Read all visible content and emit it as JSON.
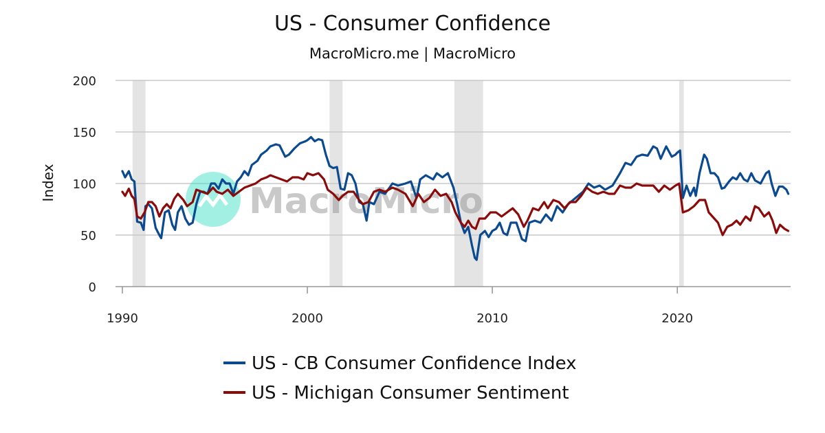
{
  "chart_data": {
    "type": "line",
    "title": "US - Consumer Confidence",
    "subtitle": "MacroMicro.me | MacroMicro",
    "watermark": "MacroMicro",
    "ylabel": "Index",
    "xlabel": "",
    "xlim": [
      1990.0,
      2026.2
    ],
    "ylim": [
      0,
      200
    ],
    "y_ticks": [
      0,
      50,
      100,
      150,
      200
    ],
    "x_ticks": [
      1990,
      2000,
      2010,
      2020
    ],
    "grid": true,
    "legend_position": "bottom",
    "recessions": [
      [
        1990.55,
        1991.25
      ],
      [
        2001.2,
        2001.9
      ],
      [
        2007.95,
        2009.5
      ],
      [
        2020.1,
        2020.35
      ]
    ],
    "series": [
      {
        "name": "US - CB Consumer Confidence Index",
        "color": "#0b4a8f",
        "points": [
          [
            1990.0,
            112
          ],
          [
            1990.15,
            106
          ],
          [
            1990.35,
            112
          ],
          [
            1990.5,
            104
          ],
          [
            1990.65,
            102
          ],
          [
            1990.8,
            63
          ],
          [
            1991.0,
            62
          ],
          [
            1991.15,
            55
          ],
          [
            1991.25,
            78
          ],
          [
            1991.4,
            80
          ],
          [
            1991.6,
            76
          ],
          [
            1991.8,
            57
          ],
          [
            1992.0,
            50
          ],
          [
            1992.1,
            47
          ],
          [
            1992.3,
            72
          ],
          [
            1992.5,
            74
          ],
          [
            1992.7,
            60
          ],
          [
            1992.85,
            55
          ],
          [
            1993.0,
            72
          ],
          [
            1993.2,
            78
          ],
          [
            1993.4,
            66
          ],
          [
            1993.6,
            60
          ],
          [
            1993.8,
            62
          ],
          [
            1994.0,
            80
          ],
          [
            1994.2,
            92
          ],
          [
            1994.4,
            92
          ],
          [
            1994.6,
            90
          ],
          [
            1994.8,
            100
          ],
          [
            1995.0,
            100
          ],
          [
            1995.2,
            95
          ],
          [
            1995.4,
            104
          ],
          [
            1995.6,
            100
          ],
          [
            1995.8,
            100
          ],
          [
            1996.0,
            90
          ],
          [
            1996.2,
            102
          ],
          [
            1996.4,
            106
          ],
          [
            1996.6,
            112
          ],
          [
            1996.8,
            108
          ],
          [
            1997.0,
            118
          ],
          [
            1997.3,
            122
          ],
          [
            1997.5,
            128
          ],
          [
            1997.8,
            132
          ],
          [
            1998.0,
            136
          ],
          [
            1998.3,
            138
          ],
          [
            1998.5,
            137
          ],
          [
            1998.8,
            126
          ],
          [
            1999.0,
            128
          ],
          [
            1999.3,
            134
          ],
          [
            1999.6,
            139
          ],
          [
            1999.9,
            141
          ],
          [
            2000.0,
            142
          ],
          [
            2000.2,
            145
          ],
          [
            2000.4,
            141
          ],
          [
            2000.6,
            143
          ],
          [
            2000.8,
            142
          ],
          [
            2001.0,
            128
          ],
          [
            2001.2,
            117
          ],
          [
            2001.4,
            115
          ],
          [
            2001.6,
            116
          ],
          [
            2001.8,
            95
          ],
          [
            2002.0,
            94
          ],
          [
            2002.2,
            110
          ],
          [
            2002.4,
            108
          ],
          [
            2002.6,
            100
          ],
          [
            2002.8,
            82
          ],
          [
            2003.0,
            80
          ],
          [
            2003.2,
            64
          ],
          [
            2003.35,
            82
          ],
          [
            2003.6,
            80
          ],
          [
            2003.9,
            92
          ],
          [
            2004.2,
            90
          ],
          [
            2004.6,
            100
          ],
          [
            2004.9,
            98
          ],
          [
            2005.3,
            100
          ],
          [
            2005.6,
            102
          ],
          [
            2005.9,
            86
          ],
          [
            2006.1,
            104
          ],
          [
            2006.4,
            108
          ],
          [
            2006.8,
            104
          ],
          [
            2007.0,
            110
          ],
          [
            2007.3,
            106
          ],
          [
            2007.6,
            110
          ],
          [
            2007.9,
            96
          ],
          [
            2008.1,
            80
          ],
          [
            2008.3,
            62
          ],
          [
            2008.5,
            52
          ],
          [
            2008.7,
            58
          ],
          [
            2008.9,
            40
          ],
          [
            2009.05,
            28
          ],
          [
            2009.15,
            26
          ],
          [
            2009.35,
            50
          ],
          [
            2009.6,
            54
          ],
          [
            2009.8,
            48
          ],
          [
            2010.0,
            54
          ],
          [
            2010.2,
            56
          ],
          [
            2010.4,
            62
          ],
          [
            2010.6,
            52
          ],
          [
            2010.8,
            50
          ],
          [
            2011.0,
            62
          ],
          [
            2011.3,
            62
          ],
          [
            2011.6,
            46
          ],
          [
            2011.8,
            44
          ],
          [
            2012.0,
            62
          ],
          [
            2012.3,
            64
          ],
          [
            2012.6,
            62
          ],
          [
            2012.9,
            70
          ],
          [
            2013.2,
            64
          ],
          [
            2013.5,
            78
          ],
          [
            2013.8,
            72
          ],
          [
            2014.1,
            80
          ],
          [
            2014.5,
            86
          ],
          [
            2014.9,
            92
          ],
          [
            2015.2,
            100
          ],
          [
            2015.5,
            96
          ],
          [
            2015.8,
            98
          ],
          [
            2016.1,
            94
          ],
          [
            2016.5,
            98
          ],
          [
            2016.9,
            110
          ],
          [
            2017.2,
            120
          ],
          [
            2017.5,
            118
          ],
          [
            2017.8,
            126
          ],
          [
            2018.1,
            128
          ],
          [
            2018.4,
            127
          ],
          [
            2018.7,
            136
          ],
          [
            2018.9,
            134
          ],
          [
            2019.1,
            124
          ],
          [
            2019.4,
            136
          ],
          [
            2019.7,
            126
          ],
          [
            2019.9,
            128
          ],
          [
            2020.0,
            130
          ],
          [
            2020.15,
            132
          ],
          [
            2020.3,
            86
          ],
          [
            2020.5,
            98
          ],
          [
            2020.7,
            88
          ],
          [
            2020.9,
            96
          ],
          [
            2021.0,
            88
          ],
          [
            2021.2,
            110
          ],
          [
            2021.45,
            128
          ],
          [
            2021.6,
            124
          ],
          [
            2021.8,
            110
          ],
          [
            2022.0,
            110
          ],
          [
            2022.2,
            106
          ],
          [
            2022.4,
            95
          ],
          [
            2022.55,
            96
          ],
          [
            2022.8,
            102
          ],
          [
            2023.0,
            106
          ],
          [
            2023.2,
            104
          ],
          [
            2023.4,
            110
          ],
          [
            2023.6,
            104
          ],
          [
            2023.8,
            102
          ],
          [
            2024.0,
            110
          ],
          [
            2024.2,
            103
          ],
          [
            2024.5,
            100
          ],
          [
            2024.8,
            110
          ],
          [
            2024.95,
            112
          ],
          [
            2025.1,
            100
          ],
          [
            2025.3,
            88
          ],
          [
            2025.5,
            97
          ],
          [
            2025.7,
            97
          ],
          [
            2025.9,
            94
          ],
          [
            2026.0,
            90
          ]
        ]
      },
      {
        "name": "US - Michigan Consumer Sentiment",
        "color": "#8b0a0a",
        "points": [
          [
            1990.0,
            92
          ],
          [
            1990.15,
            88
          ],
          [
            1990.35,
            95
          ],
          [
            1990.5,
            88
          ],
          [
            1990.65,
            85
          ],
          [
            1990.8,
            68
          ],
          [
            1991.0,
            66
          ],
          [
            1991.2,
            72
          ],
          [
            1991.4,
            82
          ],
          [
            1991.6,
            82
          ],
          [
            1991.8,
            78
          ],
          [
            1992.0,
            68
          ],
          [
            1992.2,
            76
          ],
          [
            1992.4,
            80
          ],
          [
            1992.6,
            76
          ],
          [
            1992.8,
            85
          ],
          [
            1993.0,
            90
          ],
          [
            1993.3,
            84
          ],
          [
            1993.5,
            78
          ],
          [
            1993.8,
            82
          ],
          [
            1994.0,
            94
          ],
          [
            1994.3,
            92
          ],
          [
            1994.6,
            90
          ],
          [
            1994.9,
            96
          ],
          [
            1995.1,
            92
          ],
          [
            1995.4,
            90
          ],
          [
            1995.7,
            94
          ],
          [
            1996.0,
            88
          ],
          [
            1996.3,
            92
          ],
          [
            1996.6,
            96
          ],
          [
            1996.9,
            98
          ],
          [
            1997.2,
            100
          ],
          [
            1997.5,
            104
          ],
          [
            1997.8,
            106
          ],
          [
            1998.0,
            108
          ],
          [
            1998.3,
            106
          ],
          [
            1998.6,
            104
          ],
          [
            1998.9,
            102
          ],
          [
            1999.2,
            106
          ],
          [
            1999.5,
            106
          ],
          [
            1999.8,
            104
          ],
          [
            2000.0,
            110
          ],
          [
            2000.3,
            108
          ],
          [
            2000.6,
            110
          ],
          [
            2000.9,
            104
          ],
          [
            2001.1,
            94
          ],
          [
            2001.4,
            90
          ],
          [
            2001.7,
            84
          ],
          [
            2001.9,
            88
          ],
          [
            2002.2,
            92
          ],
          [
            2002.5,
            92
          ],
          [
            2002.8,
            84
          ],
          [
            2003.0,
            80
          ],
          [
            2003.3,
            82
          ],
          [
            2003.6,
            92
          ],
          [
            2003.9,
            94
          ],
          [
            2004.2,
            92
          ],
          [
            2004.6,
            96
          ],
          [
            2004.9,
            94
          ],
          [
            2005.3,
            90
          ],
          [
            2005.7,
            78
          ],
          [
            2006.0,
            90
          ],
          [
            2006.3,
            82
          ],
          [
            2006.6,
            86
          ],
          [
            2006.9,
            94
          ],
          [
            2007.2,
            88
          ],
          [
            2007.5,
            90
          ],
          [
            2007.8,
            82
          ],
          [
            2008.0,
            72
          ],
          [
            2008.3,
            62
          ],
          [
            2008.5,
            58
          ],
          [
            2008.7,
            64
          ],
          [
            2008.9,
            58
          ],
          [
            2009.1,
            56
          ],
          [
            2009.3,
            66
          ],
          [
            2009.6,
            66
          ],
          [
            2009.9,
            72
          ],
          [
            2010.2,
            72
          ],
          [
            2010.5,
            68
          ],
          [
            2010.8,
            72
          ],
          [
            2011.1,
            76
          ],
          [
            2011.4,
            70
          ],
          [
            2011.7,
            58
          ],
          [
            2011.9,
            64
          ],
          [
            2012.2,
            76
          ],
          [
            2012.5,
            74
          ],
          [
            2012.8,
            82
          ],
          [
            2013.0,
            76
          ],
          [
            2013.3,
            84
          ],
          [
            2013.6,
            82
          ],
          [
            2013.9,
            76
          ],
          [
            2014.2,
            82
          ],
          [
            2014.5,
            82
          ],
          [
            2014.8,
            88
          ],
          [
            2015.1,
            96
          ],
          [
            2015.4,
            92
          ],
          [
            2015.7,
            90
          ],
          [
            2016.0,
            92
          ],
          [
            2016.3,
            90
          ],
          [
            2016.6,
            90
          ],
          [
            2016.9,
            98
          ],
          [
            2017.2,
            96
          ],
          [
            2017.5,
            96
          ],
          [
            2017.8,
            100
          ],
          [
            2018.1,
            98
          ],
          [
            2018.4,
            98
          ],
          [
            2018.7,
            98
          ],
          [
            2019.0,
            92
          ],
          [
            2019.3,
            98
          ],
          [
            2019.6,
            94
          ],
          [
            2019.9,
            98
          ],
          [
            2020.1,
            100
          ],
          [
            2020.3,
            72
          ],
          [
            2020.6,
            74
          ],
          [
            2020.9,
            78
          ],
          [
            2021.2,
            84
          ],
          [
            2021.5,
            84
          ],
          [
            2021.7,
            72
          ],
          [
            2021.9,
            68
          ],
          [
            2022.2,
            62
          ],
          [
            2022.45,
            50
          ],
          [
            2022.7,
            58
          ],
          [
            2022.95,
            60
          ],
          [
            2023.2,
            64
          ],
          [
            2023.4,
            60
          ],
          [
            2023.7,
            68
          ],
          [
            2023.95,
            64
          ],
          [
            2024.2,
            78
          ],
          [
            2024.4,
            76
          ],
          [
            2024.7,
            68
          ],
          [
            2024.95,
            72
          ],
          [
            2025.15,
            64
          ],
          [
            2025.35,
            52
          ],
          [
            2025.55,
            60
          ],
          [
            2025.8,
            56
          ],
          [
            2026.0,
            54
          ]
        ]
      }
    ]
  }
}
